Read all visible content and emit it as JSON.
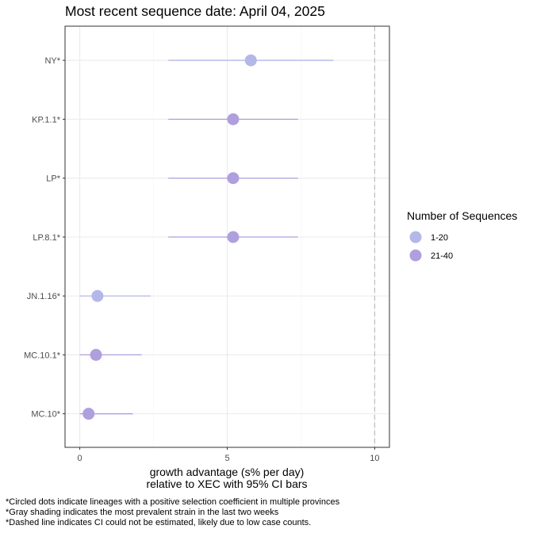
{
  "chart_data": {
    "type": "scatter",
    "title": "Most recent sequence date: April 04, 2025",
    "xlabel_line1": "growth advantage (s% per day)",
    "xlabel_line2": "relative to  XEC  with 95% CI bars",
    "ylabel": "",
    "xlim": [
      -0.5,
      10.5
    ],
    "x_ticks": [
      0,
      5,
      10
    ],
    "grid": true,
    "dashed_reference_x": 10,
    "legend": {
      "title": "Number of Sequences",
      "placement": "right",
      "entries": [
        {
          "label": "1-20",
          "color": "#b3b8e8"
        },
        {
          "label": "21-40",
          "color": "#b09fde"
        }
      ]
    },
    "categories": [
      "NY*",
      "KP.1.1*",
      "LP*",
      "LP.8.1*",
      "JN.1.16*",
      "MC.10.1*",
      "MC.10*"
    ],
    "points": [
      {
        "lineage": "NY*",
        "x": 5.8,
        "ci_low": 3.0,
        "ci_high": 8.6,
        "group": "1-20"
      },
      {
        "lineage": "KP.1.1*",
        "x": 5.2,
        "ci_low": 3.0,
        "ci_high": 7.4,
        "group": "21-40"
      },
      {
        "lineage": "LP*",
        "x": 5.2,
        "ci_low": 3.0,
        "ci_high": 7.4,
        "group": "21-40"
      },
      {
        "lineage": "LP.8.1*",
        "x": 5.2,
        "ci_low": 3.0,
        "ci_high": 7.4,
        "group": "21-40"
      },
      {
        "lineage": "JN.1.16*",
        "x": 0.6,
        "ci_low": 0.0,
        "ci_high": 2.4,
        "group": "1-20"
      },
      {
        "lineage": "MC.10.1*",
        "x": 0.55,
        "ci_low": 0.0,
        "ci_high": 2.1,
        "group": "21-40"
      },
      {
        "lineage": "MC.10*",
        "x": 0.3,
        "ci_low": 0.0,
        "ci_high": 1.8,
        "group": "21-40"
      }
    ]
  },
  "footnotes": [
    "*Circled dots indicate lineages with a positive selection coefficient in multiple provinces",
    "*Gray shading indicates the most prevalent strain in the last two weeks",
    "*Dashed line indicates CI could not be estimated, likely due to low case counts."
  ],
  "colors": {
    "group_1_20": "#b3b8e8",
    "group_21_40": "#b09fde",
    "grid": "#ebebeb",
    "panel_border": "#333333",
    "dashed_line": "#bdbdbd"
  }
}
